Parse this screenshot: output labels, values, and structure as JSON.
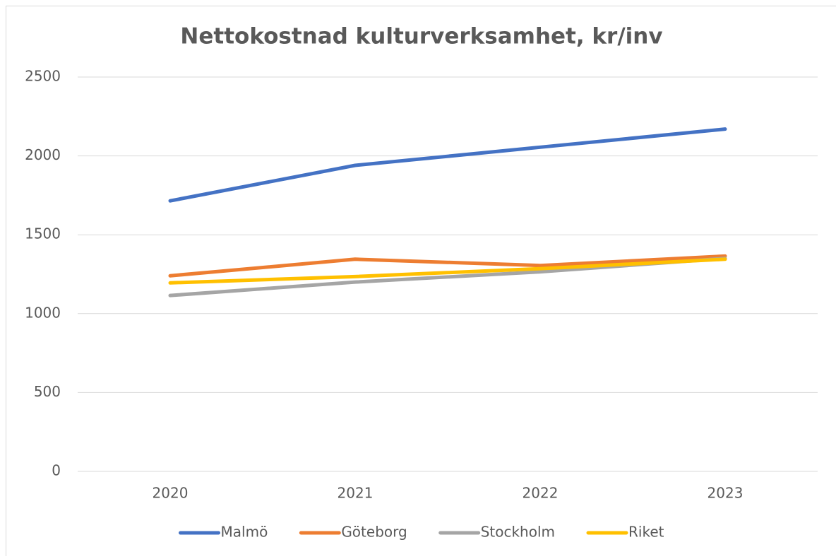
{
  "chart_data": {
    "type": "line",
    "title": "Nettokostnad kulturverksamhet, kr/inv",
    "categories": [
      "2020",
      "2021",
      "2022",
      "2023"
    ],
    "series": [
      {
        "name": "Malmö",
        "color": "#4472c4",
        "values": [
          1715,
          1940,
          2055,
          2170
        ]
      },
      {
        "name": "Göteborg",
        "color": "#ed7d31",
        "values": [
          1240,
          1345,
          1305,
          1365
        ]
      },
      {
        "name": "Stockholm",
        "color": "#a5a5a5",
        "values": [
          1115,
          1200,
          1265,
          1350
        ]
      },
      {
        "name": "Riket",
        "color": "#ffc000",
        "values": [
          1195,
          1235,
          1285,
          1345
        ]
      }
    ],
    "ylim": [
      0,
      2500
    ],
    "yticks": [
      0,
      500,
      1000,
      1500,
      2000,
      2500
    ],
    "grid": true,
    "legend": "bottom"
  }
}
